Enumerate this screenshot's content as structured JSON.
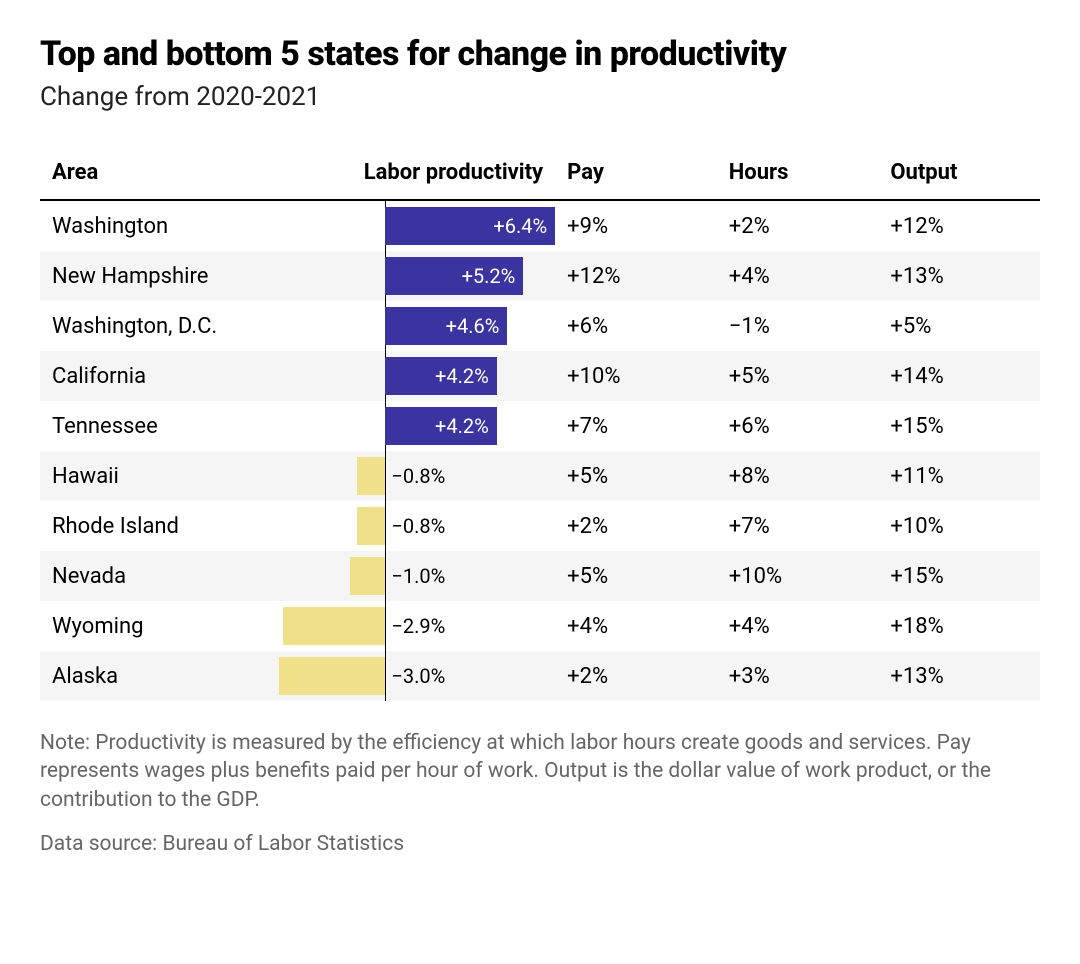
{
  "title": "Top and bottom 5 states for change in productivity",
  "subtitle": "Change from 2020-2021",
  "columns": {
    "area": "Area",
    "productivity": "Labor productivity",
    "pay": "Pay",
    "hours": "Hours",
    "output": "Output"
  },
  "chart": {
    "type": "bar-with-table",
    "axis_center_fraction": 0.4,
    "max_abs_value": 6.4,
    "bar_positive_color": "#3a33a0",
    "bar_negative_color": "#f0e08a",
    "bar_label_inside_color": "#ffffff",
    "bar_label_outside_color": "#000000",
    "row_stripe_colors": [
      "#ffffff",
      "#f5f5f5"
    ],
    "axis_line_color": "#000000",
    "title_fontsize": 34,
    "subtitle_fontsize": 26,
    "header_fontsize": 22,
    "cell_fontsize": 22,
    "bar_label_fontsize": 20,
    "note_fontsize": 21
  },
  "rows": [
    {
      "area": "Washington",
      "productivity_value": 6.4,
      "productivity_label": "+6.4%",
      "pay": "+9%",
      "hours": "+2%",
      "output": "+12%"
    },
    {
      "area": "New Hampshire",
      "productivity_value": 5.2,
      "productivity_label": "+5.2%",
      "pay": "+12%",
      "hours": "+4%",
      "output": "+13%"
    },
    {
      "area": "Washington, D.C.",
      "productivity_value": 4.6,
      "productivity_label": "+4.6%",
      "pay": "+6%",
      "hours": "−1%",
      "output": "+5%"
    },
    {
      "area": "California",
      "productivity_value": 4.2,
      "productivity_label": "+4.2%",
      "pay": "+10%",
      "hours": "+5%",
      "output": "+14%"
    },
    {
      "area": "Tennessee",
      "productivity_value": 4.2,
      "productivity_label": "+4.2%",
      "pay": "+7%",
      "hours": "+6%",
      "output": "+15%"
    },
    {
      "area": "Hawaii",
      "productivity_value": -0.8,
      "productivity_label": "−0.8%",
      "pay": "+5%",
      "hours": "+8%",
      "output": "+11%"
    },
    {
      "area": "Rhode Island",
      "productivity_value": -0.8,
      "productivity_label": "−0.8%",
      "pay": "+2%",
      "hours": "+7%",
      "output": "+10%"
    },
    {
      "area": "Nevada",
      "productivity_value": -1.0,
      "productivity_label": "−1.0%",
      "pay": "+5%",
      "hours": "+10%",
      "output": "+15%"
    },
    {
      "area": "Wyoming",
      "productivity_value": -2.9,
      "productivity_label": "−2.9%",
      "pay": "+4%",
      "hours": "+4%",
      "output": "+18%"
    },
    {
      "area": "Alaska",
      "productivity_value": -3.0,
      "productivity_label": "−3.0%",
      "pay": "+2%",
      "hours": "+3%",
      "output": "+13%"
    }
  ],
  "note": "Note: Productivity is measured by the efficiency at which labor hours create goods and services. Pay represents wages plus benefits paid per hour of work. Output is the dollar value of work product, or the contribution to the GDP.",
  "source": "Data source: Bureau of Labor Statistics"
}
